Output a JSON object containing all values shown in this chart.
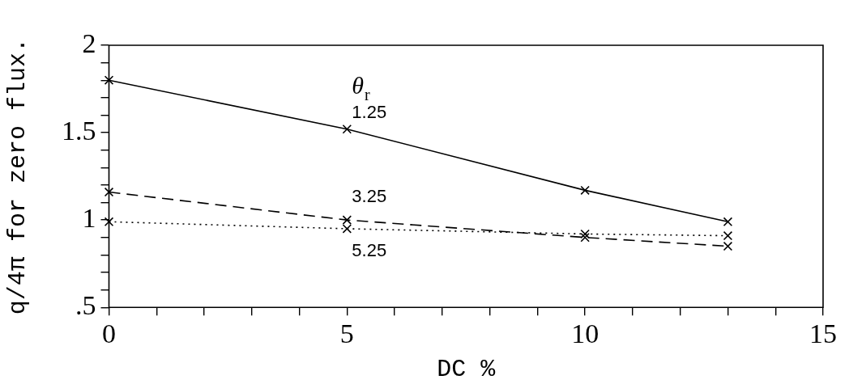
{
  "chart_data": {
    "type": "line",
    "xlabel": "DC %",
    "ylabel": "q/4π for zero flux.",
    "legend_title": "θ$_{r}$",
    "x": [
      0,
      5,
      10,
      13
    ],
    "series": [
      {
        "name": "1.25",
        "color": "#000000",
        "line_style": "solid",
        "values": [
          1.8,
          1.52,
          1.17,
          0.99
        ]
      },
      {
        "name": "3.25",
        "color": "#000000",
        "line_style": "dashed",
        "values": [
          1.16,
          1.0,
          0.9,
          0.85
        ]
      },
      {
        "name": "5.25",
        "color": "#000000",
        "line_style": "dotted",
        "values": [
          0.99,
          0.95,
          0.92,
          0.91
        ]
      }
    ],
    "marker": "cross",
    "legend": false,
    "grid": false,
    "xlim": [
      0,
      15
    ],
    "xticks": [
      0,
      {
        "value": 1,
        "label": null
      },
      {
        "value": 2,
        "label": null
      },
      {
        "value": 3,
        "label": null
      },
      {
        "value": 4,
        "label": null
      },
      5,
      {
        "value": 6,
        "label": null
      },
      {
        "value": 7,
        "label": null
      },
      {
        "value": 8,
        "label": null
      },
      {
        "value": 9,
        "label": null
      },
      10,
      {
        "value": 11,
        "label": null
      },
      {
        "value": 12,
        "label": null
      },
      {
        "value": 13,
        "label": null
      },
      {
        "value": 14,
        "label": null
      },
      15
    ],
    "ylim": [
      0.5,
      2
    ],
    "yticks": [
      {
        "value": 0.5,
        "label": ".5"
      },
      {
        "value": 0.6,
        "label": null
      },
      {
        "value": 0.7,
        "label": null
      },
      {
        "value": 0.8,
        "label": null
      },
      {
        "value": 0.9,
        "label": null
      },
      1,
      {
        "value": 1.1,
        "label": null
      },
      {
        "value": 1.2,
        "label": null
      },
      {
        "value": 1.3,
        "label": null
      },
      {
        "value": 1.4,
        "label": null
      },
      1.5,
      {
        "value": 1.6,
        "label": null
      },
      {
        "value": 1.7,
        "label": null
      },
      {
        "value": 1.8,
        "label": null
      },
      {
        "value": 1.9,
        "label": null
      },
      2
    ]
  }
}
